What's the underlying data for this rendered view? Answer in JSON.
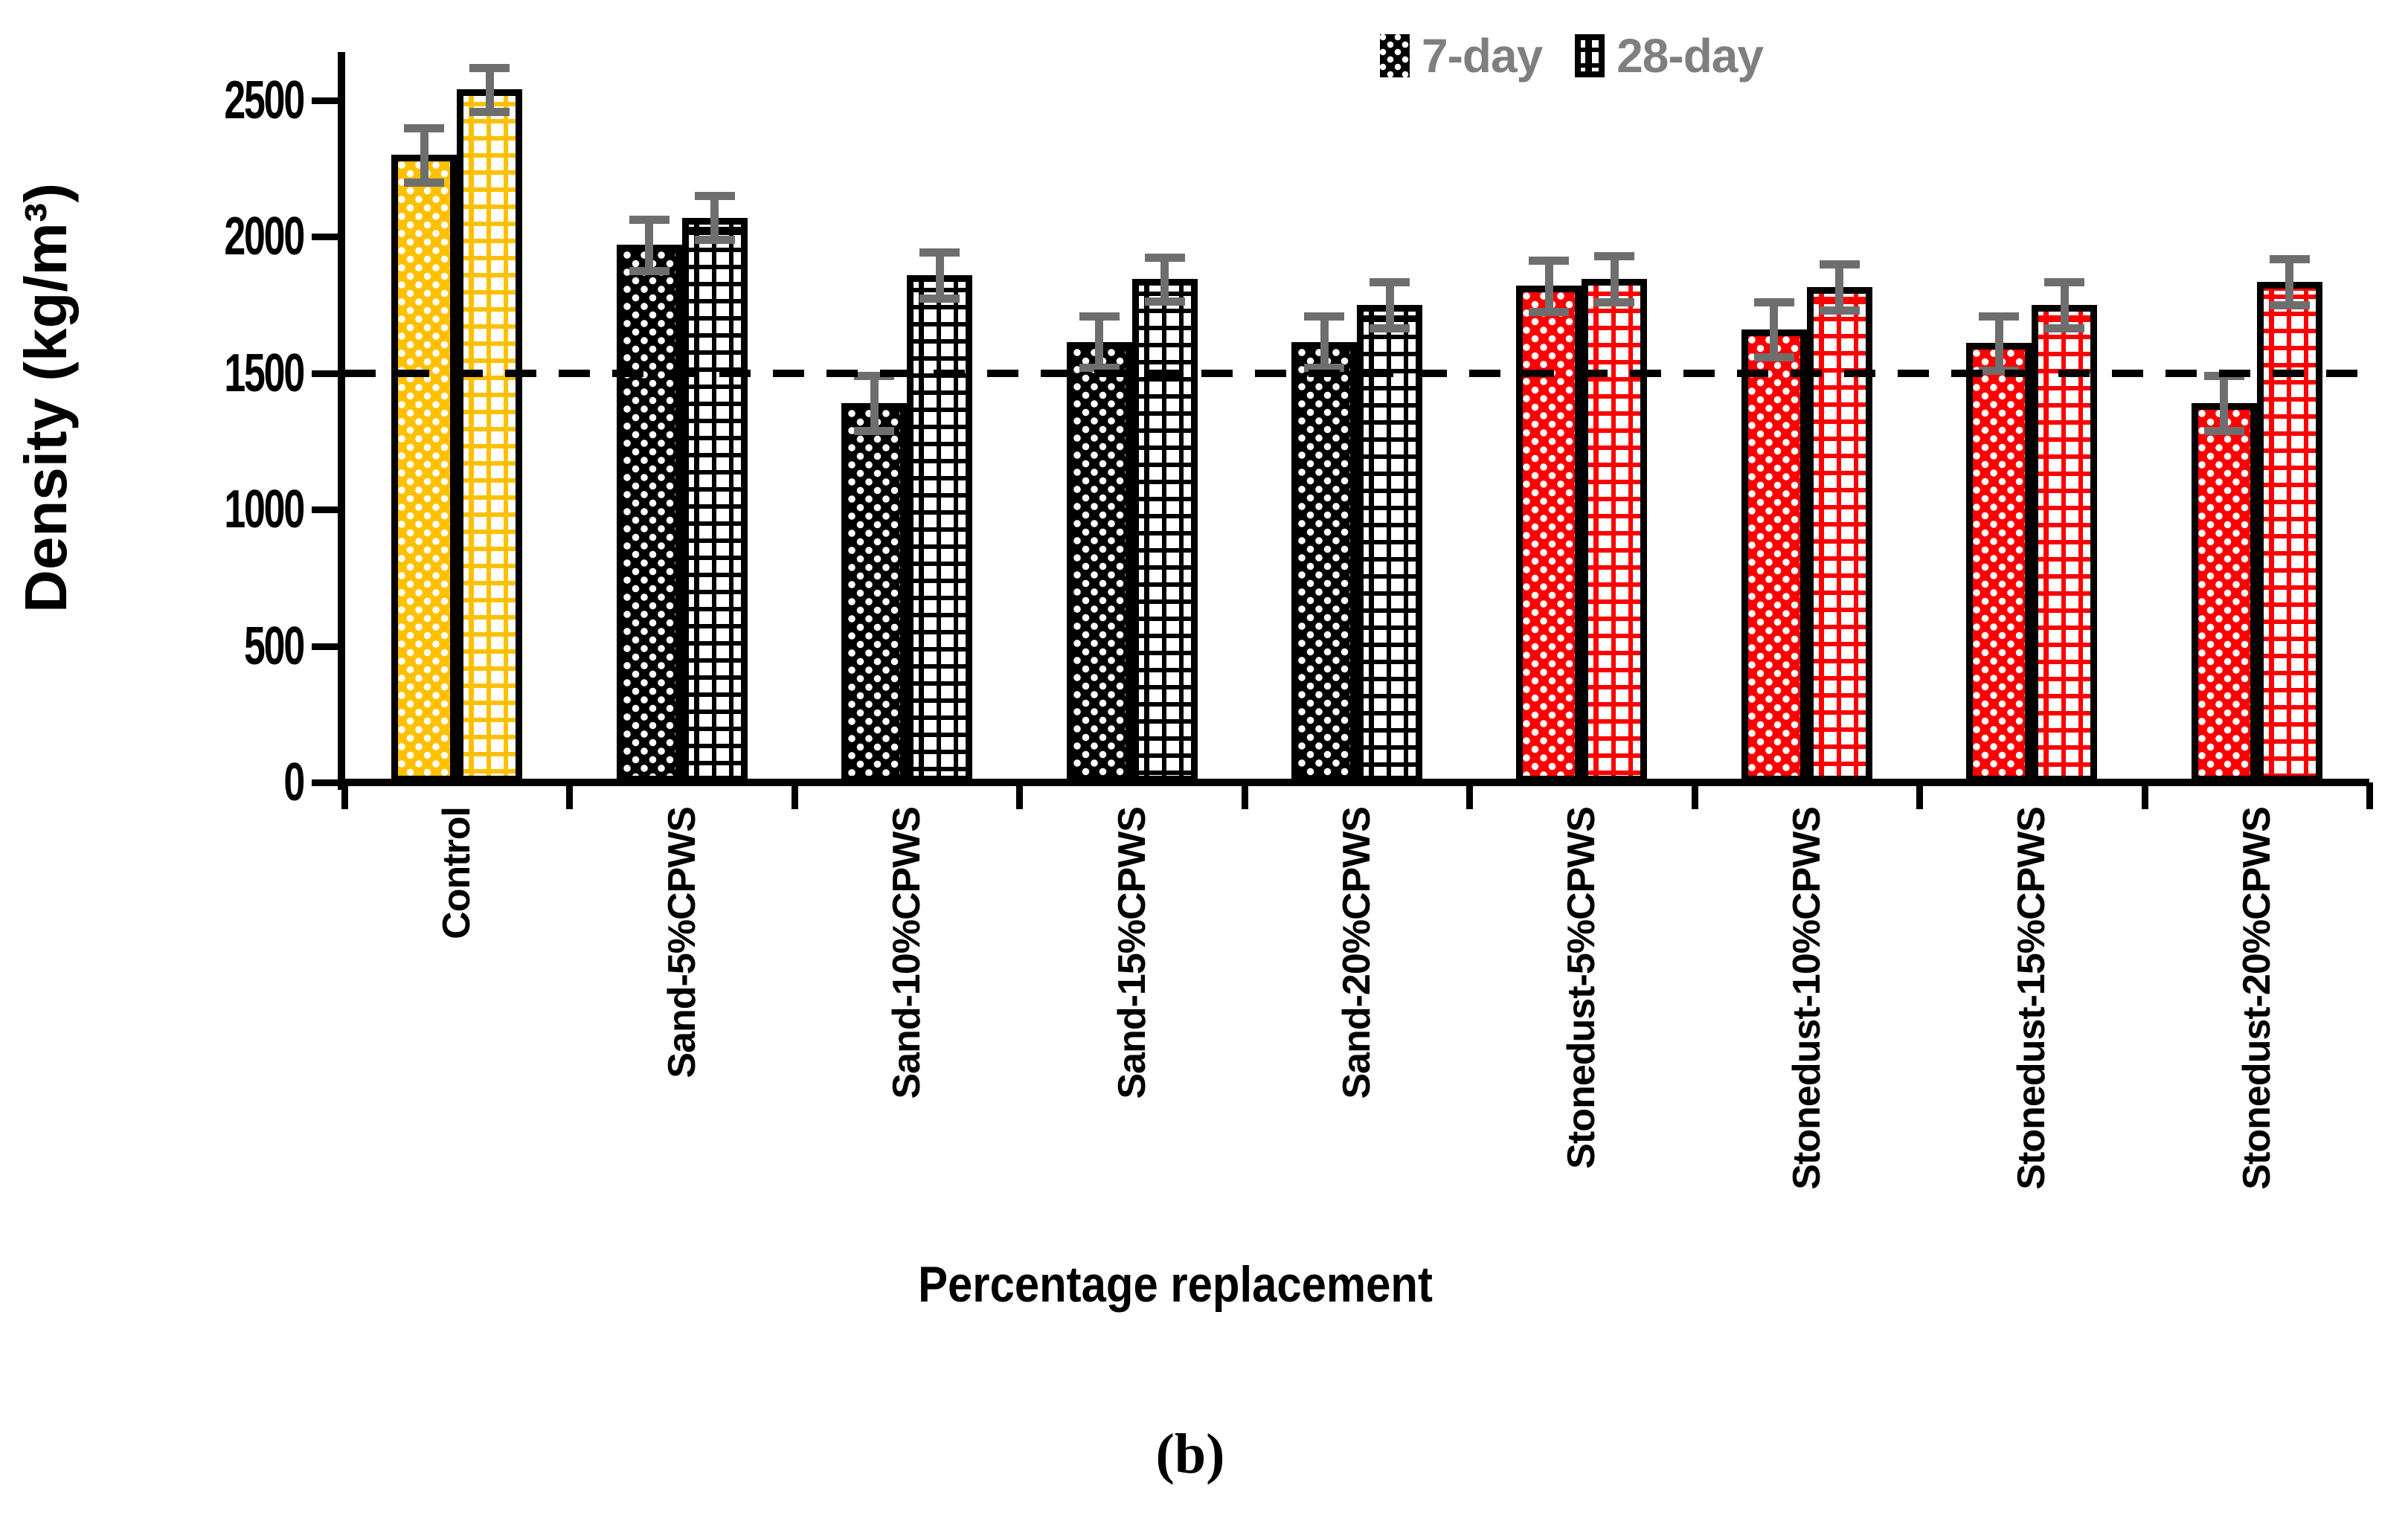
{
  "figure": {
    "caption": "(b)"
  },
  "legend": {
    "items": [
      {
        "label": "7-day",
        "pattern": "dots"
      },
      {
        "label": "28-day",
        "pattern": "grid"
      }
    ],
    "text_color": "#7f7f7f"
  },
  "axes": {
    "x_title": "Percentage replacement",
    "y_title": "Density (kg/m³)",
    "y_tick_labels": [
      "0",
      "500",
      "1000",
      "1500",
      "2000",
      "2500"
    ]
  },
  "chart_data": {
    "type": "bar",
    "title": "",
    "xlabel": "Percentage replacement",
    "ylabel": "Density (kg/m³)",
    "ylim": [
      0,
      2700
    ],
    "yticks": [
      0,
      500,
      1000,
      1500,
      2000,
      2500
    ],
    "grid": false,
    "legend_position": "top-right",
    "reference_line": {
      "value": 1500,
      "style": "dashed",
      "color": "#000000"
    },
    "categories": [
      "Control",
      "Sand-5%CPWS",
      "Sand-10%CPWS",
      "Sand-15%CPWS",
      "Sand-20%CPWS",
      "Stonedust-5%CPWS",
      "Stonedust-10%CPWS",
      "Stonedust-15%CPWS",
      "Stonedust-20%CPWS"
    ],
    "group_colors": [
      "#FFC000",
      "#000000",
      "#000000",
      "#000000",
      "#000000",
      "#FF0000",
      "#FF0000",
      "#FF0000",
      "#FF0000"
    ],
    "series": [
      {
        "name": "7-day",
        "pattern": "dots",
        "values": [
          2300,
          1970,
          1390,
          1615,
          1615,
          1820,
          1660,
          1610,
          1390
        ],
        "errors": [
          100,
          95,
          100,
          95,
          95,
          95,
          100,
          100,
          100
        ]
      },
      {
        "name": "28-day",
        "pattern": "grid",
        "values": [
          2540,
          2070,
          1860,
          1845,
          1750,
          1845,
          1815,
          1750,
          1835
        ],
        "errors": [
          80,
          80,
          85,
          80,
          85,
          85,
          85,
          85,
          85
        ]
      }
    ],
    "error_bar_color": "#6e6e6e"
  }
}
